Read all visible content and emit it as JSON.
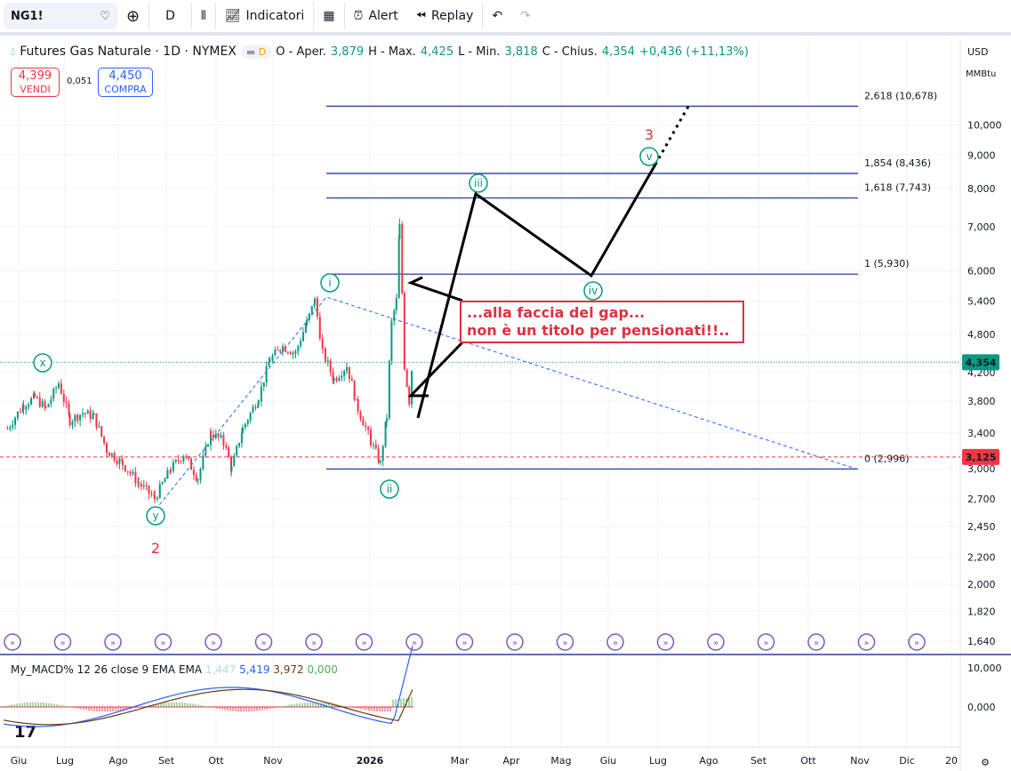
{
  "toolbar": {
    "symbol": "NG1!",
    "interval": "D",
    "indicators": "Indicatori",
    "alert": "Alert",
    "replay": "Replay"
  },
  "header": {
    "title": "Futures Gas Naturale · 1D · NYMEX",
    "badge": "D",
    "o_label": "O - Aper.",
    "o": "3,879",
    "h_label": "H - Max.",
    "h": "4,425",
    "l_label": "L - Min.",
    "l": "3,818",
    "c_label": "C - Chius.",
    "c": "4,354",
    "change": "+0,436 (+11,13%)"
  },
  "trade": {
    "sell_price": "4,399",
    "sell_label": "VENDI",
    "spread": "0,051",
    "buy_price": "4,450",
    "buy_label": "COMPRA"
  },
  "scale": {
    "currency": "USD",
    "unit": "MMBtu"
  },
  "colors": {
    "up": "#089981",
    "down": "#f23645",
    "accent": "#2962ff",
    "annot": "#e03040"
  },
  "price_axis": [
    "10,000",
    "9,000",
    "8,000",
    "7,000",
    "6,000",
    "5,400",
    "4,800",
    "4,200",
    "3,800",
    "3,400",
    "3,000",
    "2,700",
    "2,450",
    "2,200",
    "2,000",
    "1,820",
    "1,640"
  ],
  "last_price": "4,354",
  "red_line_price": "3,125",
  "time_axis": [
    "Giu",
    "Lug",
    "Ago",
    "Set",
    "Ott",
    "Nov",
    "2026",
    "Mar",
    "Apr",
    "Mag",
    "Giu",
    "Lug",
    "Ago",
    "Set",
    "Ott",
    "Nov",
    "Dic",
    "20"
  ],
  "fib": [
    {
      "label": "2,618 (10,678)",
      "price": 10.678
    },
    {
      "label": "1,854 (8,436)",
      "price": 8.436
    },
    {
      "label": "1,618 (7,743)",
      "price": 7.743
    },
    {
      "label": "1 (5,930)",
      "price": 5.93
    },
    {
      "label": "0 (2,996)",
      "price": 2.996
    }
  ],
  "waves": {
    "x": "x",
    "y": "y",
    "two": "2",
    "i": "i",
    "ii": "ii",
    "iii": "iii",
    "iv": "iv",
    "v": "v",
    "three": "3"
  },
  "annotation": {
    "line1": "...alla faccia del gap...",
    "line2": "non è un titolo per pensionati!!.."
  },
  "macd": {
    "label": "My_MACD% 12 26 close 9 EMA EMA",
    "v1": "1,447",
    "v2": "5,419",
    "v3": "3,972",
    "v4": "0,000",
    "axis": [
      "10,000",
      "0,000"
    ]
  },
  "chart_data": {
    "type": "candlestick",
    "price_points_day_since_jun1": [
      [
        -7,
        3.45
      ],
      [
        3,
        3.75
      ],
      [
        10,
        3.85
      ],
      [
        17,
        3.7
      ],
      [
        25,
        4.05
      ],
      [
        32,
        3.55
      ],
      [
        40,
        3.65
      ],
      [
        47,
        3.6
      ],
      [
        55,
        3.2
      ],
      [
        65,
        3.05
      ],
      [
        75,
        2.85
      ],
      [
        85,
        2.7
      ],
      [
        95,
        3.0
      ],
      [
        103,
        3.15
      ],
      [
        112,
        2.9
      ],
      [
        120,
        3.4
      ],
      [
        128,
        3.3
      ],
      [
        133,
        3.0
      ],
      [
        140,
        3.45
      ],
      [
        150,
        3.85
      ],
      [
        157,
        4.4
      ],
      [
        165,
        4.6
      ],
      [
        173,
        4.5
      ],
      [
        180,
        5.0
      ],
      [
        185,
        5.4
      ],
      [
        190,
        4.5
      ],
      [
        197,
        4.1
      ],
      [
        205,
        4.3
      ],
      [
        212,
        3.7
      ],
      [
        220,
        3.3
      ],
      [
        226,
        3.05
      ],
      [
        230,
        3.6
      ],
      [
        233,
        5.0
      ],
      [
        236,
        5.4
      ],
      [
        238,
        7.0
      ],
      [
        241,
        4.3
      ],
      [
        244,
        3.8
      ],
      [
        246,
        4.354
      ]
    ]
  }
}
